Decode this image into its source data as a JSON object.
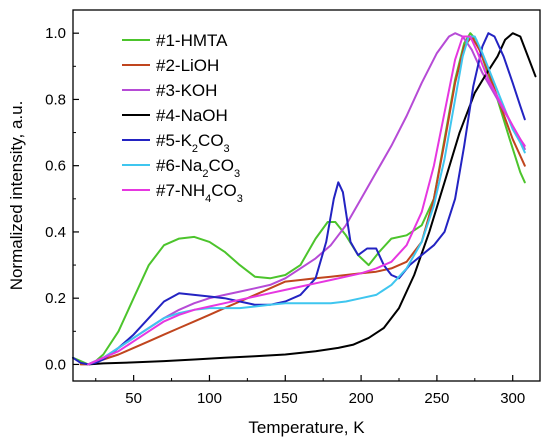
{
  "chart_data": {
    "type": "line",
    "xlabel": "Temperature, K",
    "ylabel": "Normalized intensity, a.u.",
    "xlim": [
      10,
      318
    ],
    "ylim": [
      -0.05,
      1.07
    ],
    "x_ticks": [
      50,
      100,
      150,
      200,
      250,
      300
    ],
    "y_ticks": [
      0.0,
      0.2,
      0.4,
      0.6,
      0.8,
      1.0
    ],
    "x_tick_labels": [
      "50",
      "100",
      "150",
      "200",
      "250",
      "300"
    ],
    "y_tick_labels": [
      "0.0",
      "0.2",
      "0.4",
      "0.6",
      "0.8",
      "1.0"
    ],
    "grid": false,
    "legend_position": "top-left",
    "series": [
      {
        "name": "#1-HMTA",
        "legend_parts": [
          [
            "#1-HMTA",
            false
          ]
        ],
        "color": "#4cc42c",
        "points": [
          [
            10,
            0.02
          ],
          [
            15,
            0.01
          ],
          [
            20,
            0.0
          ],
          [
            25,
            0.01
          ],
          [
            30,
            0.03
          ],
          [
            40,
            0.1
          ],
          [
            50,
            0.2
          ],
          [
            60,
            0.3
          ],
          [
            70,
            0.36
          ],
          [
            80,
            0.38
          ],
          [
            90,
            0.385
          ],
          [
            100,
            0.37
          ],
          [
            110,
            0.34
          ],
          [
            120,
            0.3
          ],
          [
            130,
            0.265
          ],
          [
            140,
            0.26
          ],
          [
            150,
            0.27
          ],
          [
            160,
            0.3
          ],
          [
            170,
            0.38
          ],
          [
            178,
            0.43
          ],
          [
            183,
            0.43
          ],
          [
            190,
            0.39
          ],
          [
            198,
            0.33
          ],
          [
            205,
            0.3
          ],
          [
            212,
            0.34
          ],
          [
            220,
            0.38
          ],
          [
            230,
            0.39
          ],
          [
            240,
            0.42
          ],
          [
            248,
            0.5
          ],
          [
            255,
            0.68
          ],
          [
            262,
            0.86
          ],
          [
            268,
            0.97
          ],
          [
            272,
            1.0
          ],
          [
            276,
            0.98
          ],
          [
            282,
            0.9
          ],
          [
            290,
            0.8
          ],
          [
            298,
            0.68
          ],
          [
            305,
            0.58
          ],
          [
            308,
            0.55
          ]
        ]
      },
      {
        "name": "#2-LiOH",
        "legend_parts": [
          [
            "#2-LiOH",
            false
          ]
        ],
        "color": "#c0451e",
        "points": [
          [
            15,
            0.0
          ],
          [
            20,
            0.0
          ],
          [
            25,
            0.01
          ],
          [
            30,
            0.015
          ],
          [
            40,
            0.03
          ],
          [
            50,
            0.05
          ],
          [
            60,
            0.07
          ],
          [
            70,
            0.09
          ],
          [
            80,
            0.11
          ],
          [
            90,
            0.13
          ],
          [
            100,
            0.15
          ],
          [
            110,
            0.17
          ],
          [
            120,
            0.19
          ],
          [
            130,
            0.21
          ],
          [
            140,
            0.23
          ],
          [
            150,
            0.25
          ],
          [
            160,
            0.255
          ],
          [
            170,
            0.26
          ],
          [
            180,
            0.265
          ],
          [
            190,
            0.27
          ],
          [
            200,
            0.275
          ],
          [
            210,
            0.28
          ],
          [
            220,
            0.29
          ],
          [
            230,
            0.31
          ],
          [
            240,
            0.37
          ],
          [
            248,
            0.5
          ],
          [
            255,
            0.67
          ],
          [
            262,
            0.85
          ],
          [
            268,
            0.96
          ],
          [
            273,
            0.99
          ],
          [
            278,
            0.95
          ],
          [
            285,
            0.87
          ],
          [
            292,
            0.78
          ],
          [
            300,
            0.68
          ],
          [
            305,
            0.63
          ],
          [
            308,
            0.6
          ]
        ]
      },
      {
        "name": "#3-KOH",
        "legend_parts": [
          [
            "#3-KOH",
            false
          ]
        ],
        "color": "#b64bd6",
        "points": [
          [
            20,
            0.0
          ],
          [
            25,
            0.01
          ],
          [
            30,
            0.02
          ],
          [
            40,
            0.05
          ],
          [
            50,
            0.08
          ],
          [
            60,
            0.11
          ],
          [
            70,
            0.14
          ],
          [
            80,
            0.165
          ],
          [
            90,
            0.185
          ],
          [
            100,
            0.2
          ],
          [
            110,
            0.21
          ],
          [
            120,
            0.22
          ],
          [
            130,
            0.23
          ],
          [
            140,
            0.24
          ],
          [
            150,
            0.26
          ],
          [
            160,
            0.29
          ],
          [
            170,
            0.32
          ],
          [
            180,
            0.36
          ],
          [
            190,
            0.42
          ],
          [
            200,
            0.5
          ],
          [
            210,
            0.58
          ],
          [
            220,
            0.66
          ],
          [
            230,
            0.75
          ],
          [
            240,
            0.85
          ],
          [
            250,
            0.94
          ],
          [
            258,
            0.99
          ],
          [
            262,
            1.0
          ],
          [
            267,
            0.99
          ],
          [
            273,
            0.95
          ],
          [
            280,
            0.88
          ],
          [
            290,
            0.8
          ],
          [
            300,
            0.72
          ],
          [
            305,
            0.68
          ],
          [
            308,
            0.65
          ]
        ]
      },
      {
        "name": "#4-NaOH",
        "legend_parts": [
          [
            "#4-NaOH",
            false
          ]
        ],
        "color": "#000000",
        "points": [
          [
            20,
            0.0
          ],
          [
            30,
            0.003
          ],
          [
            50,
            0.006
          ],
          [
            70,
            0.01
          ],
          [
            90,
            0.015
          ],
          [
            110,
            0.02
          ],
          [
            130,
            0.025
          ],
          [
            150,
            0.03
          ],
          [
            170,
            0.04
          ],
          [
            185,
            0.05
          ],
          [
            195,
            0.06
          ],
          [
            205,
            0.08
          ],
          [
            215,
            0.11
          ],
          [
            225,
            0.17
          ],
          [
            235,
            0.27
          ],
          [
            245,
            0.4
          ],
          [
            255,
            0.55
          ],
          [
            265,
            0.7
          ],
          [
            275,
            0.82
          ],
          [
            283,
            0.88
          ],
          [
            290,
            0.93
          ],
          [
            295,
            0.98
          ],
          [
            300,
            1.0
          ],
          [
            305,
            0.99
          ],
          [
            310,
            0.93
          ],
          [
            315,
            0.87
          ]
        ]
      },
      {
        "name": "#5-K2CO3",
        "legend_parts": [
          [
            "#5-K",
            false
          ],
          [
            "2",
            true
          ],
          [
            "CO",
            false
          ],
          [
            "3",
            true
          ]
        ],
        "color": "#2323c2",
        "points": [
          [
            10,
            0.02
          ],
          [
            15,
            0.005
          ],
          [
            20,
            0.0
          ],
          [
            25,
            0.005
          ],
          [
            30,
            0.015
          ],
          [
            40,
            0.05
          ],
          [
            50,
            0.09
          ],
          [
            60,
            0.14
          ],
          [
            70,
            0.19
          ],
          [
            80,
            0.215
          ],
          [
            90,
            0.21
          ],
          [
            100,
            0.205
          ],
          [
            110,
            0.2
          ],
          [
            120,
            0.19
          ],
          [
            130,
            0.18
          ],
          [
            140,
            0.18
          ],
          [
            150,
            0.19
          ],
          [
            160,
            0.21
          ],
          [
            170,
            0.26
          ],
          [
            177,
            0.37
          ],
          [
            182,
            0.5
          ],
          [
            185,
            0.55
          ],
          [
            188,
            0.52
          ],
          [
            193,
            0.37
          ],
          [
            198,
            0.33
          ],
          [
            204,
            0.35
          ],
          [
            210,
            0.35
          ],
          [
            215,
            0.3
          ],
          [
            220,
            0.27
          ],
          [
            225,
            0.26
          ],
          [
            232,
            0.3
          ],
          [
            240,
            0.33
          ],
          [
            248,
            0.36
          ],
          [
            255,
            0.4
          ],
          [
            262,
            0.5
          ],
          [
            268,
            0.66
          ],
          [
            274,
            0.84
          ],
          [
            280,
            0.96
          ],
          [
            284,
            1.0
          ],
          [
            288,
            0.99
          ],
          [
            294,
            0.93
          ],
          [
            300,
            0.85
          ],
          [
            305,
            0.78
          ],
          [
            308,
            0.74
          ]
        ]
      },
      {
        "name": "#6-Na2CO3",
        "legend_parts": [
          [
            "#6-Na",
            false
          ],
          [
            "2",
            true
          ],
          [
            "CO",
            false
          ],
          [
            "3",
            true
          ]
        ],
        "color": "#3fc6ef",
        "points": [
          [
            20,
            0.0
          ],
          [
            25,
            0.01
          ],
          [
            30,
            0.02
          ],
          [
            40,
            0.05
          ],
          [
            50,
            0.08
          ],
          [
            60,
            0.11
          ],
          [
            70,
            0.14
          ],
          [
            80,
            0.155
          ],
          [
            90,
            0.165
          ],
          [
            100,
            0.17
          ],
          [
            110,
            0.17
          ],
          [
            120,
            0.17
          ],
          [
            130,
            0.175
          ],
          [
            140,
            0.18
          ],
          [
            150,
            0.185
          ],
          [
            160,
            0.185
          ],
          [
            170,
            0.185
          ],
          [
            180,
            0.185
          ],
          [
            190,
            0.19
          ],
          [
            200,
            0.2
          ],
          [
            210,
            0.21
          ],
          [
            220,
            0.24
          ],
          [
            230,
            0.29
          ],
          [
            240,
            0.37
          ],
          [
            248,
            0.48
          ],
          [
            255,
            0.62
          ],
          [
            262,
            0.8
          ],
          [
            267,
            0.93
          ],
          [
            271,
            0.99
          ],
          [
            275,
            0.99
          ],
          [
            280,
            0.94
          ],
          [
            287,
            0.86
          ],
          [
            294,
            0.78
          ],
          [
            300,
            0.71
          ],
          [
            305,
            0.67
          ],
          [
            308,
            0.64
          ]
        ]
      },
      {
        "name": "#7-NH4CO3",
        "legend_parts": [
          [
            "#7-NH",
            false
          ],
          [
            "4",
            true
          ],
          [
            "CO",
            false
          ],
          [
            "3",
            true
          ]
        ],
        "color": "#e637e0",
        "points": [
          [
            20,
            0.0
          ],
          [
            25,
            0.01
          ],
          [
            30,
            0.02
          ],
          [
            40,
            0.04
          ],
          [
            50,
            0.07
          ],
          [
            60,
            0.1
          ],
          [
            70,
            0.13
          ],
          [
            80,
            0.15
          ],
          [
            90,
            0.165
          ],
          [
            100,
            0.175
          ],
          [
            110,
            0.185
          ],
          [
            120,
            0.195
          ],
          [
            130,
            0.205
          ],
          [
            140,
            0.215
          ],
          [
            150,
            0.225
          ],
          [
            160,
            0.235
          ],
          [
            170,
            0.245
          ],
          [
            180,
            0.255
          ],
          [
            190,
            0.265
          ],
          [
            200,
            0.275
          ],
          [
            210,
            0.29
          ],
          [
            220,
            0.31
          ],
          [
            230,
            0.36
          ],
          [
            240,
            0.46
          ],
          [
            248,
            0.6
          ],
          [
            255,
            0.76
          ],
          [
            262,
            0.92
          ],
          [
            267,
            0.99
          ],
          [
            272,
            0.99
          ],
          [
            277,
            0.94
          ],
          [
            284,
            0.86
          ],
          [
            292,
            0.79
          ],
          [
            300,
            0.72
          ],
          [
            305,
            0.68
          ],
          [
            308,
            0.66
          ]
        ]
      }
    ]
  }
}
